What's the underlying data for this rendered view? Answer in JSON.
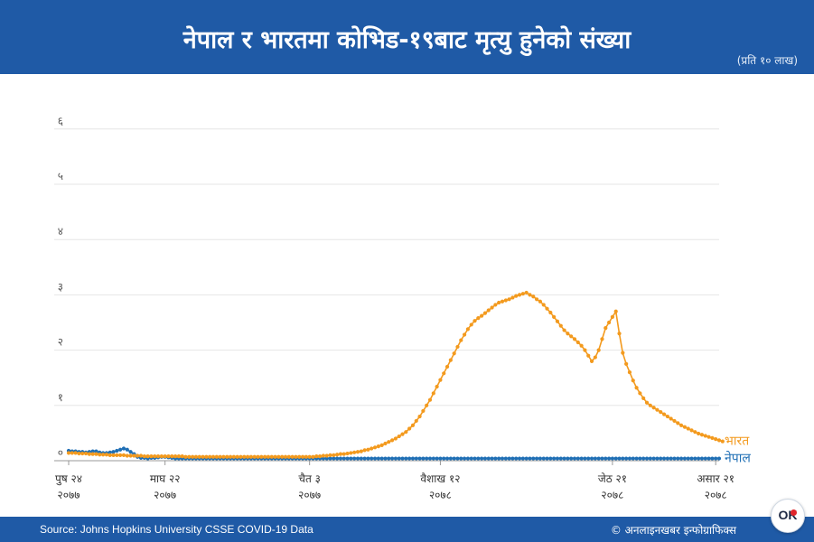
{
  "header": {
    "title": "नेपाल र भारतमा कोभिड-१९बाट मृत्यु हुनेको संख्या",
    "subtitle": "(प्रति १० लाख)"
  },
  "footer": {
    "source": "Source: Johns Hopkins University CSSE COVID-19 Data",
    "credit": "© अनलाइनखबर इन्फोग्राफिक्स"
  },
  "logo": {
    "text": "OK"
  },
  "colors": {
    "header": "#1f5aa6",
    "nepal": "#1f6fb5",
    "india": "#f39a1e",
    "grid": "#e6e6e6"
  },
  "chart_data": {
    "type": "line",
    "title": "नेपाल र भारतमा कोभिड-१९बाट मृत्यु हुनेको संख्या",
    "subtitle": "(प्रति १० लाख)",
    "ylim": [
      0,
      6.2
    ],
    "yticks": [
      "०",
      "१",
      "२",
      "३",
      "४",
      "५",
      "६"
    ],
    "grid": true,
    "xticks": [
      {
        "label": "पुष २४",
        "year": "२०७७"
      },
      {
        "label": "माघ २२",
        "year": "२०७७"
      },
      {
        "label": "चैत ३",
        "year": "२०७७"
      },
      {
        "label": "वैशाख १२",
        "year": "२०७८"
      },
      {
        "label": "जेठ २१",
        "year": "२०७८"
      },
      {
        "label": "असार २१",
        "year": "२०७८"
      }
    ],
    "xtick_index": [
      0,
      28,
      70,
      108,
      158,
      188
    ],
    "series": [
      {
        "name": "नेपाल",
        "values": [
          0.18,
          0.17,
          0.17,
          0.16,
          0.16,
          0.15,
          0.16,
          0.17,
          0.17,
          0.15,
          0.14,
          0.14,
          0.15,
          0.16,
          0.18,
          0.2,
          0.22,
          0.2,
          0.16,
          0.12,
          0.07,
          0.05,
          0.05,
          0.04,
          0.05,
          0.05,
          0.06,
          0.07,
          0.07,
          0.06,
          0.05,
          0.04,
          0.04,
          0.04,
          0.04,
          0.04,
          0.04,
          0.04,
          0.04,
          0.04,
          0.04,
          0.04,
          0.04,
          0.04,
          0.04,
          0.04,
          0.04,
          0.04,
          0.04,
          0.04,
          0.04,
          0.04,
          0.04,
          0.04,
          0.04,
          0.04,
          0.04,
          0.04,
          0.04,
          0.04,
          0.04,
          0.04,
          0.04,
          0.04,
          0.04,
          0.04,
          0.04,
          0.04,
          0.04,
          0.04,
          0.04,
          0.04,
          0.04,
          0.04,
          0.04,
          0.04,
          0.04,
          0.04,
          0.04,
          0.04,
          0.04,
          0.04,
          0.04,
          0.04,
          0.04,
          0.04,
          0.04,
          0.04,
          0.04,
          0.04,
          0.04,
          0.04,
          0.04,
          0.04,
          0.04,
          0.04,
          0.04,
          0.04,
          0.04,
          0.04,
          0.04,
          0.04,
          0.04,
          0.04,
          0.04,
          0.04,
          0.04,
          0.04,
          0.04,
          0.04,
          0.04,
          0.04,
          0.04,
          0.04,
          0.04,
          0.04,
          0.04,
          0.04,
          0.04,
          0.04,
          0.04,
          0.04,
          0.04,
          0.04,
          0.04,
          0.04,
          0.04,
          0.04,
          0.04,
          0.04,
          0.04,
          0.04,
          0.04,
          0.04,
          0.04,
          0.04,
          0.04,
          0.04,
          0.04,
          0.04,
          0.04,
          0.04,
          0.04,
          0.04,
          0.04,
          0.04,
          0.04,
          0.04,
          0.04,
          0.04,
          0.04,
          0.04,
          0.04,
          0.04,
          0.04,
          0.04,
          0.04,
          0.04,
          0.04,
          0.04,
          0.04,
          0.04,
          0.04,
          0.04,
          0.04,
          0.04,
          0.04,
          0.04,
          0.04,
          0.04,
          0.04,
          0.04,
          0.04,
          0.04,
          0.04,
          0.04,
          0.04,
          0.04,
          0.04,
          0.04,
          0.04,
          0.04,
          0.04,
          0.04,
          0.04,
          0.04,
          0.04,
          0.04,
          0.04,
          0.04
        ]
      },
      {
        "name": "भारत",
        "values": [
          0.14,
          0.14,
          0.14,
          0.13,
          0.13,
          0.13,
          0.12,
          0.12,
          0.12,
          0.11,
          0.11,
          0.11,
          0.1,
          0.1,
          0.1,
          0.1,
          0.1,
          0.09,
          0.09,
          0.09,
          0.09,
          0.09,
          0.08,
          0.08,
          0.08,
          0.08,
          0.08,
          0.08,
          0.08,
          0.08,
          0.08,
          0.08,
          0.08,
          0.08,
          0.07,
          0.07,
          0.07,
          0.07,
          0.07,
          0.07,
          0.07,
          0.07,
          0.07,
          0.07,
          0.07,
          0.07,
          0.07,
          0.07,
          0.07,
          0.07,
          0.07,
          0.07,
          0.07,
          0.07,
          0.07,
          0.07,
          0.07,
          0.07,
          0.07,
          0.07,
          0.07,
          0.07,
          0.07,
          0.07,
          0.07,
          0.07,
          0.07,
          0.07,
          0.07,
          0.07,
          0.07,
          0.07,
          0.08,
          0.08,
          0.09,
          0.09,
          0.1,
          0.1,
          0.11,
          0.12,
          0.12,
          0.13,
          0.14,
          0.15,
          0.16,
          0.17,
          0.19,
          0.2,
          0.22,
          0.24,
          0.26,
          0.28,
          0.31,
          0.34,
          0.37,
          0.4,
          0.44,
          0.48,
          0.52,
          0.58,
          0.64,
          0.72,
          0.8,
          0.9,
          1.0,
          1.1,
          1.22,
          1.34,
          1.46,
          1.58,
          1.7,
          1.82,
          1.94,
          2.06,
          2.18,
          2.28,
          2.38,
          2.46,
          2.53,
          2.58,
          2.62,
          2.67,
          2.72,
          2.77,
          2.82,
          2.86,
          2.88,
          2.9,
          2.92,
          2.95,
          2.98,
          3.0,
          3.02,
          3.04,
          3.0,
          2.97,
          2.92,
          2.88,
          2.82,
          2.75,
          2.68,
          2.6,
          2.52,
          2.44,
          2.36,
          2.3,
          2.25,
          2.2,
          2.14,
          2.08,
          2.0,
          1.9,
          1.8,
          1.87,
          2.0,
          2.2,
          2.4,
          2.5,
          2.6,
          2.7,
          2.3,
          1.95,
          1.75,
          1.6,
          1.45,
          1.32,
          1.22,
          1.13,
          1.05,
          1.0,
          0.96,
          0.92,
          0.88,
          0.84,
          0.8,
          0.76,
          0.72,
          0.68,
          0.64,
          0.61,
          0.58,
          0.55,
          0.52,
          0.49,
          0.47,
          0.45,
          0.43,
          0.41,
          0.39,
          0.37,
          0.35
        ]
      }
    ]
  }
}
